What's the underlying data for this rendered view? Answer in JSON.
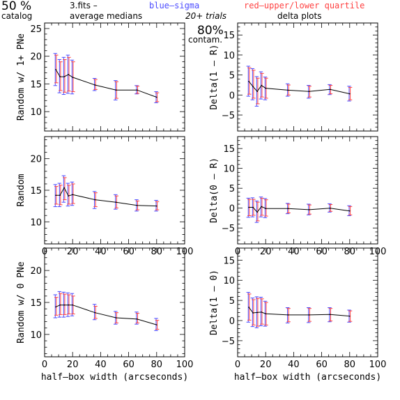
{
  "header": {
    "pct_left": "50 %",
    "catalog": "catalog",
    "fits": "3.fits  –",
    "avg_medians": "average medians",
    "blue": "blue–sigma",
    "red": "red–upper/lower quartile",
    "trials": "20+ trials",
    "contam_pct": "80%",
    "contam": "contam.",
    "delta_plots": "delta plots"
  },
  "colors": {
    "line": "#000000",
    "blue": "#4a4aff",
    "red": "#ff4040",
    "axis": "#000000"
  },
  "chart_data": [
    {
      "type": "line",
      "panel": "left-top",
      "ylabel": "Random w/ 1+ PNe",
      "xlabel": "",
      "xlim": [
        0,
        100
      ],
      "ylim": [
        6.5,
        26
      ],
      "xticks": [],
      "yticks": [
        10,
        15,
        20,
        25
      ],
      "x": [
        8,
        11,
        14,
        17,
        20,
        36,
        51,
        66,
        80
      ],
      "y": [
        17.6,
        16.3,
        16.3,
        16.7,
        16.2,
        14.8,
        13.9,
        13.9,
        12.6
      ],
      "blue_lo": [
        14.7,
        13.4,
        13.1,
        13.3,
        13.2,
        13.8,
        12.1,
        13.2,
        11.6
      ],
      "blue_hi": [
        20.5,
        19.4,
        19.8,
        20.2,
        19.3,
        16.0,
        15.6,
        14.7,
        13.6
      ],
      "red_lo": [
        15.2,
        13.8,
        13.5,
        13.7,
        13.6,
        14.0,
        12.4,
        13.3,
        11.8
      ],
      "red_hi": [
        20.2,
        19.0,
        19.4,
        19.8,
        19.0,
        15.8,
        15.4,
        14.6,
        13.4
      ]
    },
    {
      "type": "line",
      "panel": "right-top",
      "ylabel": "Delta(1 – R)",
      "xlabel": "",
      "xlim": [
        0,
        100
      ],
      "ylim": [
        -9,
        18
      ],
      "xticks": [],
      "yticks": [
        -5,
        0,
        5,
        10,
        15
      ],
      "x": [
        8,
        11,
        14,
        17,
        20,
        36,
        51,
        66,
        80
      ],
      "y": [
        3.4,
        2.1,
        0.9,
        2.4,
        1.7,
        1.2,
        0.9,
        1.4,
        0.3
      ],
      "blue_lo": [
        -0.3,
        -1.2,
        -2.8,
        -1.0,
        -1.2,
        -0.3,
        -0.8,
        0.1,
        -1.5
      ],
      "blue_hi": [
        7.2,
        6.6,
        4.6,
        5.8,
        4.5,
        2.8,
        2.4,
        2.6,
        2.2
      ],
      "red_lo": [
        0.2,
        -0.8,
        -2.2,
        -0.5,
        -0.8,
        0.0,
        -0.5,
        0.3,
        -1.2
      ],
      "red_hi": [
        6.8,
        6.2,
        4.2,
        5.4,
        4.2,
        2.5,
        2.2,
        2.4,
        1.9
      ]
    },
    {
      "type": "line",
      "panel": "left-middle",
      "ylabel": "Random",
      "xlabel": "",
      "xlim": [
        0,
        100
      ],
      "ylim": [
        6.5,
        23.5
      ],
      "xticks": [
        0,
        20,
        40,
        60,
        80,
        100
      ],
      "yticks": [
        10,
        15,
        20
      ],
      "x": [
        8,
        11,
        14,
        17,
        20,
        36,
        51,
        66,
        80
      ],
      "y": [
        14.2,
        14.2,
        15.4,
        14.1,
        14.3,
        13.5,
        13.1,
        12.6,
        12.5
      ],
      "blue_lo": [
        12.4,
        12.4,
        13.1,
        12.5,
        12.6,
        12.1,
        12.0,
        11.7,
        11.7
      ],
      "blue_hi": [
        15.9,
        16.1,
        17.3,
        16.1,
        16.3,
        14.8,
        14.3,
        13.5,
        13.4
      ],
      "red_lo": [
        12.8,
        12.7,
        13.5,
        12.8,
        12.9,
        12.4,
        12.2,
        11.9,
        11.9
      ],
      "red_hi": [
        15.6,
        15.8,
        17.0,
        15.8,
        16.0,
        14.6,
        14.1,
        13.3,
        13.2
      ]
    },
    {
      "type": "line",
      "panel": "right-middle",
      "ylabel": "Delta(0 – R)",
      "xlabel": "",
      "xlim": [
        0,
        100
      ],
      "ylim": [
        -9,
        18
      ],
      "xticks": [
        0,
        20,
        40,
        60,
        80,
        100
      ],
      "yticks": [
        -5,
        0,
        5,
        10,
        15
      ],
      "x": [
        8,
        11,
        14,
        17,
        20,
        36,
        51,
        66,
        80
      ],
      "y": [
        0.2,
        0.2,
        -1.0,
        0.4,
        -0.1,
        -0.1,
        -0.4,
        0.0,
        -0.7
      ],
      "blue_lo": [
        -2.3,
        -2.2,
        -3.6,
        -2.2,
        -2.4,
        -1.4,
        -1.7,
        -1.0,
        -1.9
      ],
      "blue_hi": [
        2.5,
        2.6,
        1.8,
        2.8,
        2.4,
        1.2,
        1.0,
        1.1,
        0.6
      ],
      "red_lo": [
        -1.9,
        -1.8,
        -3.2,
        -1.8,
        -2.0,
        -1.2,
        -1.5,
        -0.8,
        -1.7
      ],
      "red_hi": [
        2.2,
        2.2,
        1.5,
        2.5,
        2.1,
        1.0,
        0.8,
        0.9,
        0.4
      ]
    },
    {
      "type": "line",
      "panel": "left-bottom",
      "ylabel": "Random w/ 0 PNe",
      "xlabel": "half–box width (arcseconds)",
      "xlim": [
        0,
        100
      ],
      "ylim": [
        6.5,
        23.5
      ],
      "xticks": [
        0,
        20,
        40,
        60,
        80,
        100
      ],
      "yticks": [
        10,
        15,
        20
      ],
      "x": [
        8,
        11,
        14,
        17,
        20,
        36,
        51,
        66,
        80
      ],
      "y": [
        14.3,
        14.6,
        14.6,
        14.6,
        14.6,
        13.4,
        12.6,
        12.4,
        11.5
      ],
      "blue_lo": [
        12.6,
        12.7,
        12.7,
        12.8,
        12.9,
        12.3,
        11.6,
        11.6,
        10.6
      ],
      "blue_hi": [
        16.2,
        16.7,
        16.6,
        16.5,
        16.4,
        14.7,
        13.6,
        13.5,
        12.5
      ],
      "red_lo": [
        13.0,
        13.1,
        13.1,
        13.2,
        13.2,
        12.5,
        11.8,
        11.8,
        10.8
      ],
      "red_hi": [
        15.8,
        16.4,
        16.3,
        16.2,
        16.0,
        14.4,
        13.4,
        13.3,
        12.2
      ]
    },
    {
      "type": "line",
      "panel": "right-bottom",
      "ylabel": "Delta(1 – 0)",
      "xlabel": "half–box width (arcseconds)",
      "xlim": [
        0,
        100
      ],
      "ylim": [
        -9,
        18
      ],
      "xticks": [
        0,
        20,
        40,
        60,
        80,
        100
      ],
      "yticks": [
        -5,
        0,
        5,
        10,
        15
      ],
      "x": [
        8,
        11,
        14,
        17,
        20,
        36,
        51,
        66,
        80
      ],
      "y": [
        3.3,
        1.9,
        2.0,
        2.1,
        1.7,
        1.4,
        1.4,
        1.5,
        1.1
      ],
      "blue_lo": [
        -0.4,
        -1.5,
        -1.8,
        -1.3,
        -1.4,
        -0.6,
        -0.5,
        -0.3,
        -0.4
      ],
      "blue_hi": [
        7.0,
        5.6,
        5.9,
        5.8,
        4.8,
        3.2,
        3.2,
        3.2,
        2.6
      ],
      "red_lo": [
        0.1,
        -1.1,
        -1.4,
        -0.9,
        -1.1,
        -0.3,
        -0.2,
        -0.1,
        -0.2
      ],
      "red_hi": [
        6.6,
        5.2,
        5.5,
        5.4,
        4.5,
        3.0,
        3.0,
        3.0,
        2.4
      ]
    }
  ]
}
